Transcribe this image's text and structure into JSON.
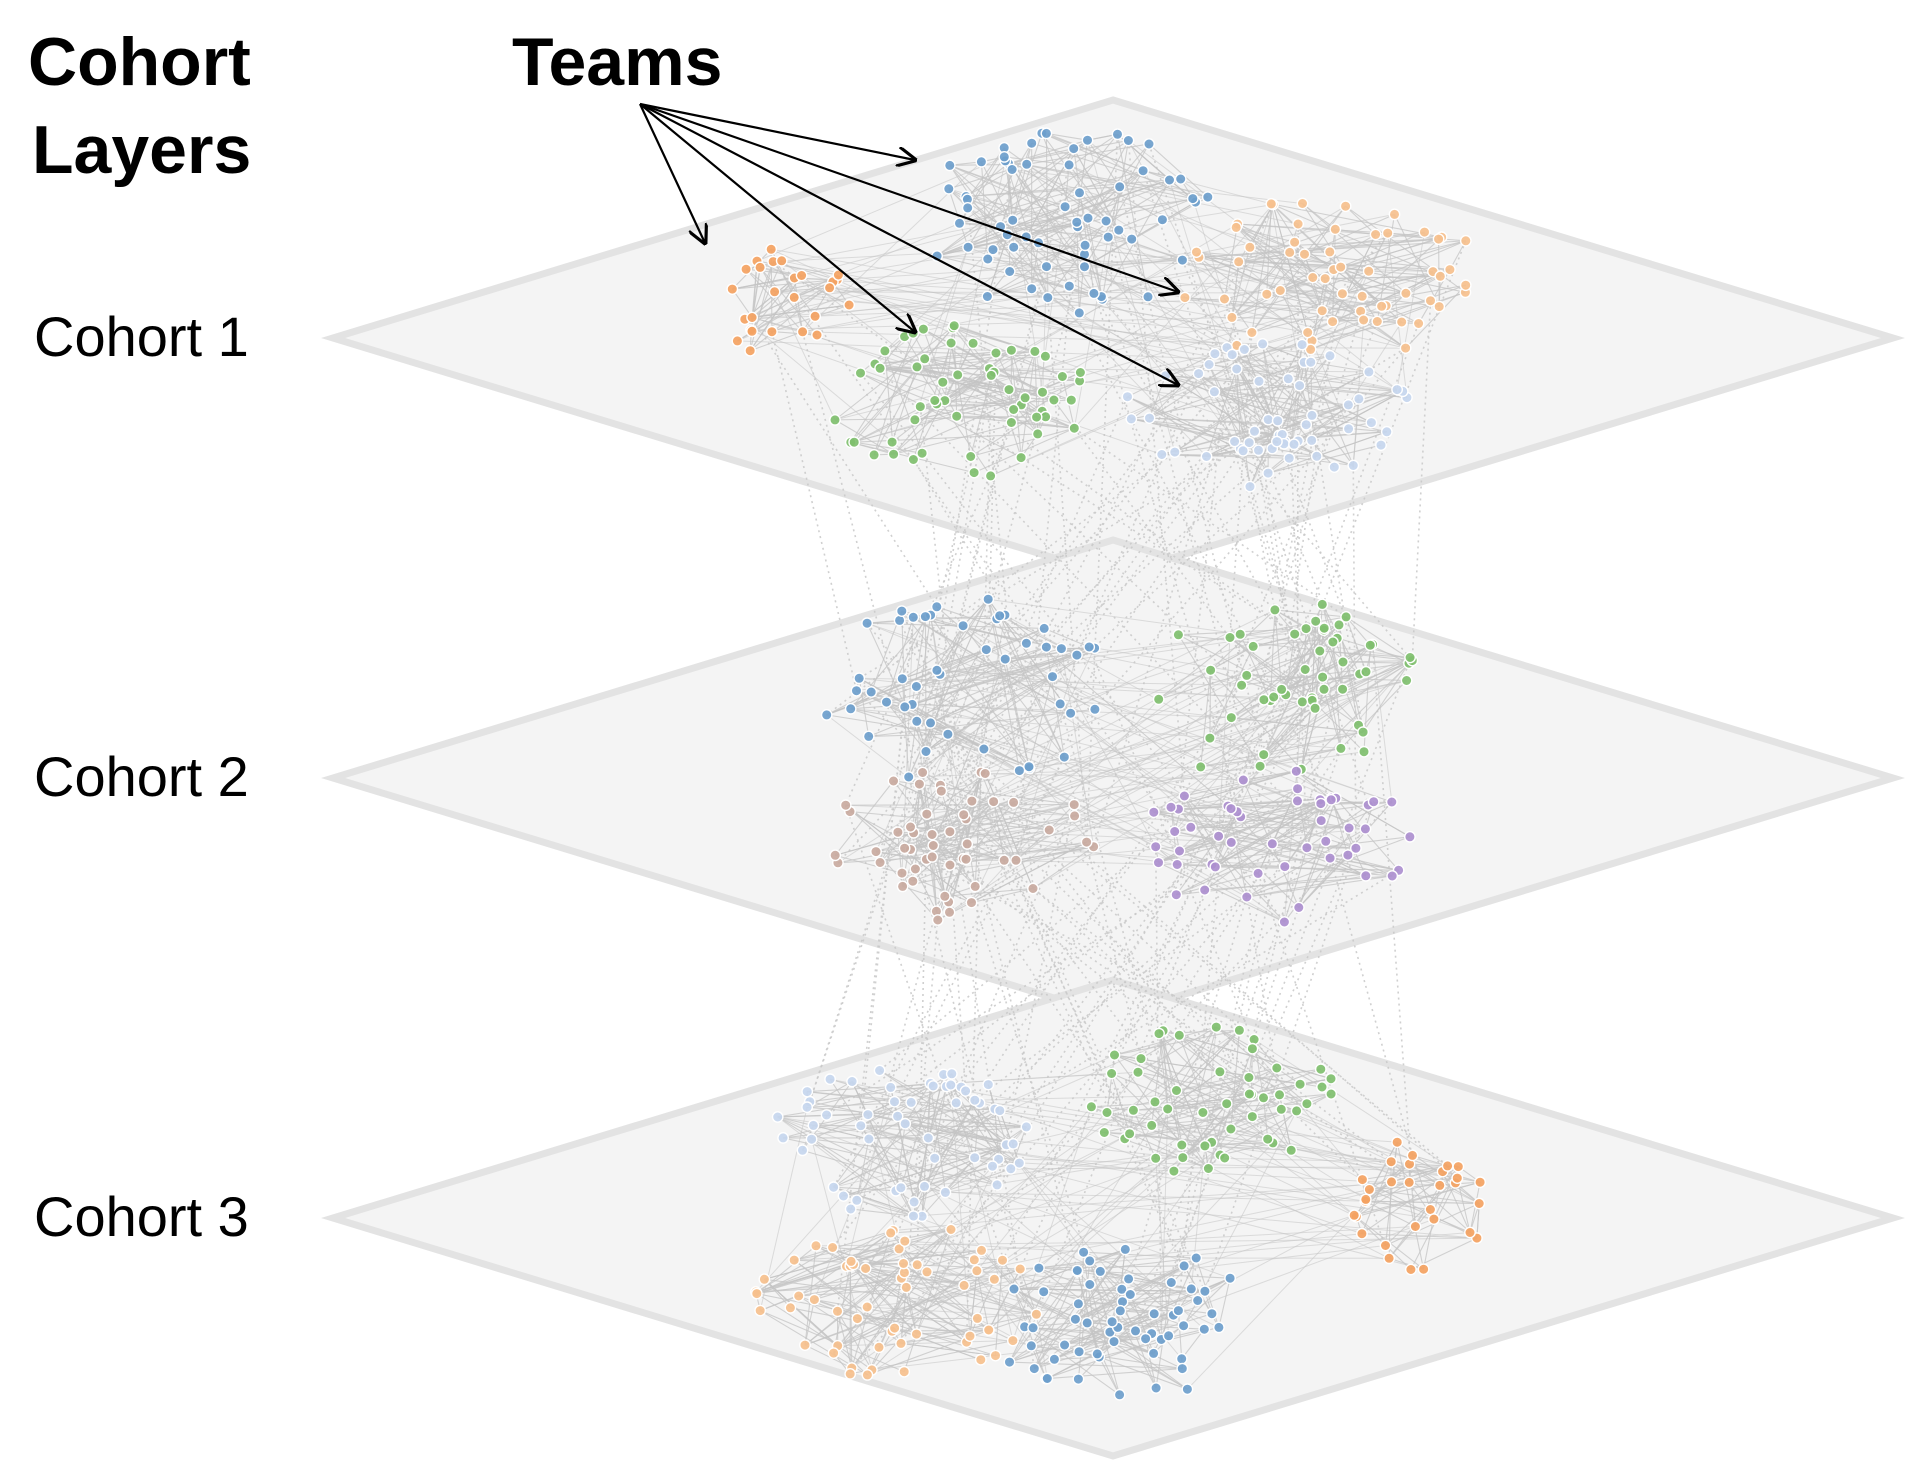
{
  "heading": {
    "line1": "Cohort",
    "line2": "Layers"
  },
  "teams_label": "Teams",
  "cohorts": [
    {
      "label": "Cohort 1",
      "clusters": [
        {
          "color": "#f4a261",
          "count": 26
        },
        {
          "color": "#6d9ecc",
          "count": 64
        },
        {
          "color": "#f6c08d",
          "count": 58
        },
        {
          "color": "#7fbf6e",
          "count": 56
        },
        {
          "color": "#c6d6ee",
          "count": 58
        }
      ]
    },
    {
      "label": "Cohort 2",
      "clusters": [
        {
          "color": "#6d9ecc",
          "count": 48
        },
        {
          "color": "#7fbf6e",
          "count": 52
        },
        {
          "color": "#c9aaa0",
          "count": 52
        },
        {
          "color": "#ad8fcf",
          "count": 50
        }
      ]
    },
    {
      "label": "Cohort 3",
      "clusters": [
        {
          "color": "#c6d6ee",
          "count": 56
        },
        {
          "color": "#7fbf6e",
          "count": 52
        },
        {
          "color": "#f4a261",
          "count": 30
        },
        {
          "color": "#f6c08d",
          "count": 58
        },
        {
          "color": "#6d9ecc",
          "count": 60
        }
      ]
    }
  ],
  "colors": {
    "layer_fill": "#f4f4f4",
    "layer_stroke": "#e3e3e3",
    "edge": "#c4c4c4",
    "interlayer_edge": "#c8c8c8",
    "arrow": "#000000"
  }
}
